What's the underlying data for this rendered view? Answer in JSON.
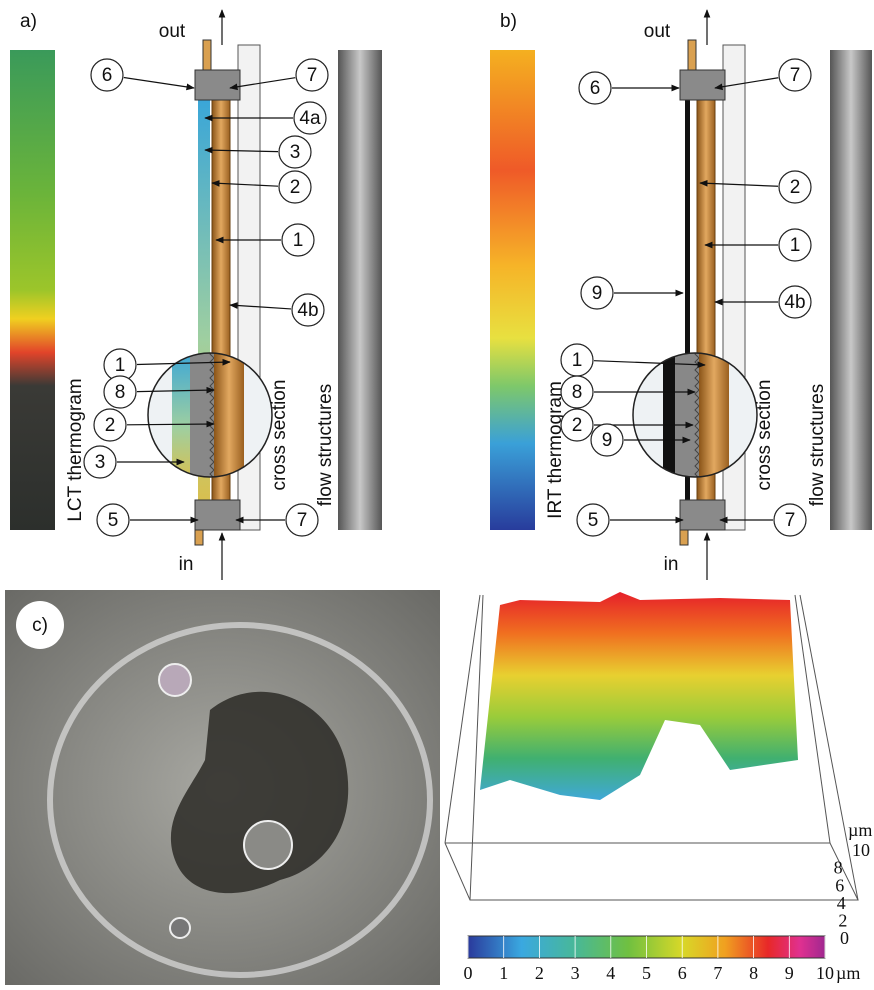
{
  "panel_a": {
    "label": "a)",
    "outlet": "out",
    "inlet": "in",
    "thermogram_label": "LCT thermogram",
    "cross_section_label": "cross section",
    "flow_label": "flow structures",
    "callouts": [
      "6",
      "7",
      "4a",
      "3",
      "2",
      "1",
      "4b",
      "1",
      "8",
      "2",
      "3",
      "5",
      "7"
    ]
  },
  "panel_b": {
    "label": "b)",
    "outlet": "out",
    "inlet": "in",
    "thermogram_label": "IRT thermogram",
    "cross_section_label": "cross section",
    "flow_label": "flow structures",
    "callouts": [
      "6",
      "7",
      "2",
      "1",
      "9",
      "4b",
      "1",
      "8",
      "2",
      "9",
      "5",
      "7"
    ]
  },
  "panel_c": {
    "label": "c)",
    "surface_axis": {
      "unit": "µm",
      "ticks": [
        10,
        8,
        6,
        4,
        2,
        0
      ]
    },
    "colorbar": {
      "ticks": [
        0,
        1,
        2,
        3,
        4,
        5,
        6,
        7,
        8,
        9,
        10
      ],
      "unit": "µm"
    }
  }
}
